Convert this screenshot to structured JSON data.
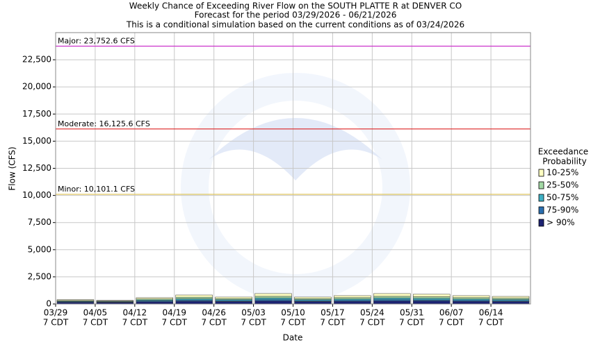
{
  "chart_data": {
    "type": "bar",
    "title": "Weekly Chance of Exceeding River Flow on the SOUTH PLATTE R at DENVER CO",
    "subtitle": [
      "Forecast for the period 03/29/2026 - 06/21/2026",
      "This is a conditional simulation based on the current conditions as of 03/24/2026"
    ],
    "x_label": "Date",
    "y_label": "Flow (CFS)",
    "categories": [
      "03/29",
      "04/05",
      "04/12",
      "04/19",
      "04/26",
      "05/03",
      "05/10",
      "05/17",
      "05/24",
      "05/31",
      "06/07",
      "06/14"
    ],
    "category_times": [
      "7 CDT",
      "7 CDT",
      "7 CDT",
      "7 CDT",
      "7 CDT",
      "7 CDT",
      "7 CDT",
      "7 CDT",
      "7 CDT",
      "7 CDT",
      "7 CDT",
      "7 CDT"
    ],
    "series": [
      {
        "name": "> 90%",
        "color": "#1c2272",
        "values": [
          150,
          140,
          200,
          250,
          220,
          280,
          220,
          240,
          280,
          270,
          240,
          220
        ]
      },
      {
        "name": "75-90%",
        "color": "#2a6fb0",
        "values": [
          50,
          40,
          80,
          100,
          80,
          120,
          80,
          100,
          120,
          110,
          100,
          90
        ]
      },
      {
        "name": "50-75%",
        "color": "#3fb0c4",
        "values": [
          60,
          50,
          90,
          130,
          100,
          150,
          100,
          120,
          150,
          140,
          120,
          110
        ]
      },
      {
        "name": "25-50%",
        "color": "#a3d9a5",
        "values": [
          60,
          50,
          90,
          150,
          100,
          160,
          100,
          130,
          160,
          150,
          130,
          120
        ]
      },
      {
        "name": "10-25%",
        "color": "#ffffc2",
        "values": [
          80,
          50,
          120,
          200,
          140,
          250,
          140,
          180,
          250,
          230,
          180,
          160
        ]
      }
    ],
    "legend_title": [
      "Exceedance",
      "Probability"
    ],
    "ylim": [
      0,
      25000
    ],
    "yticks": [
      0,
      {
        "value": 2500,
        "label": "2,500"
      },
      {
        "value": 5000,
        "label": "5,000"
      },
      {
        "value": 7500,
        "label": "7,500"
      },
      {
        "value": 10000,
        "label": "10,000"
      },
      {
        "value": 12500,
        "label": "12,500"
      },
      {
        "value": 15000,
        "label": "15,000"
      },
      {
        "value": 17500,
        "label": "17,500"
      },
      {
        "value": 20000,
        "label": "20,000"
      },
      {
        "value": 22500,
        "label": "22,500"
      }
    ],
    "grid": true,
    "thresholds": [
      {
        "value": 23752.6,
        "label": "Major: 23,752.6 CFS",
        "color": "#cc33cc"
      },
      {
        "value": 16125.6,
        "label": "Moderate: 16,125.6 CFS",
        "color": "#dd2222"
      },
      {
        "value": 10101.1,
        "label": "Minor: 10,101.1 CFS",
        "color": "#e0c860"
      }
    ]
  }
}
